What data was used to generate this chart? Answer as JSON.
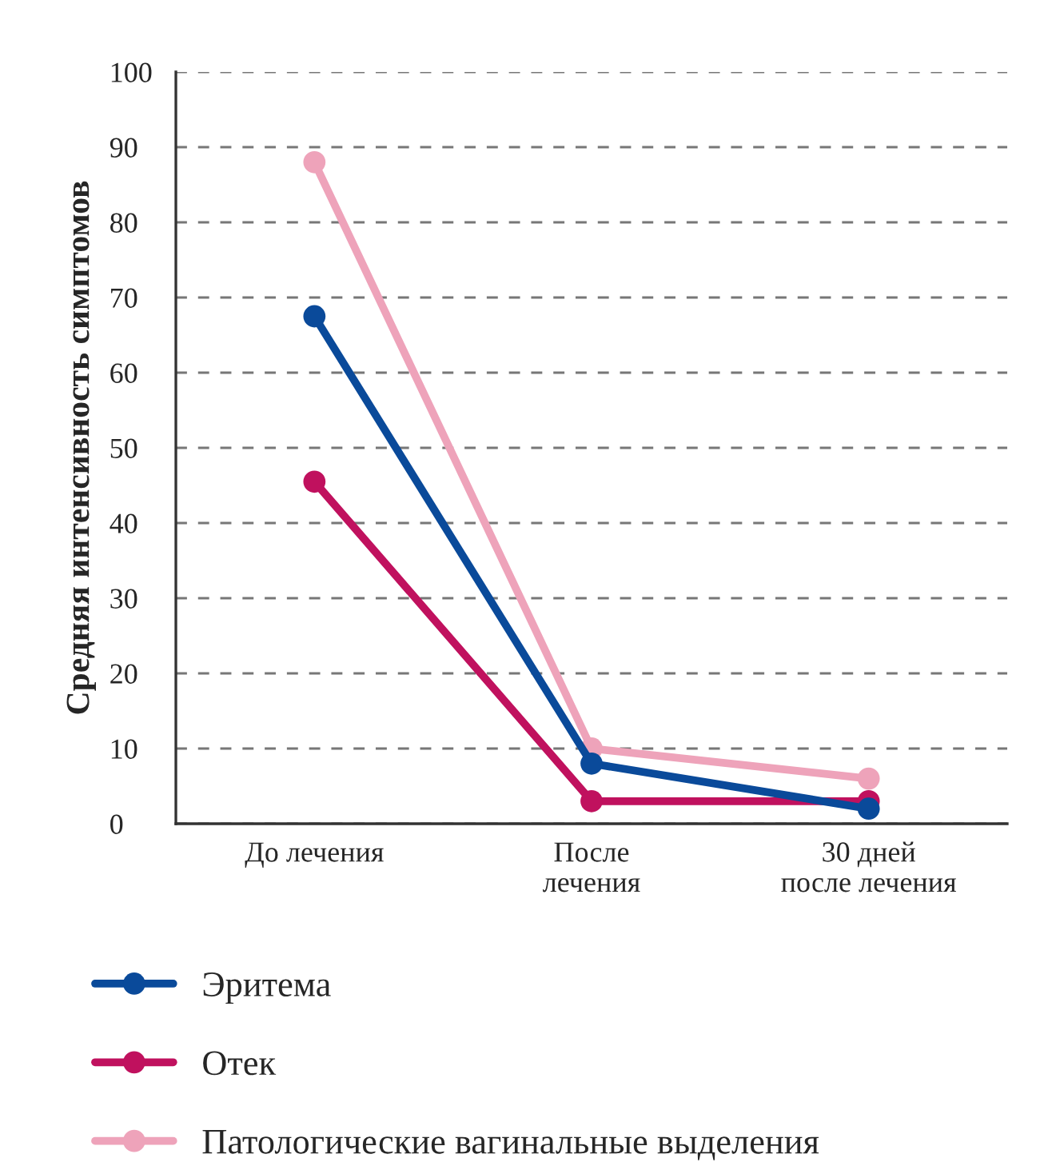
{
  "chart_data": {
    "type": "line",
    "ylabel": "Средняя интенсивность симптомов",
    "categories": [
      "До лечения",
      "После\nлечения",
      "30 дней\nпосле лечения"
    ],
    "series": [
      {
        "name": "Эритема",
        "color": "#0a4a9a",
        "values": [
          67.5,
          8,
          2
        ]
      },
      {
        "name": "Отек",
        "color": "#c0115e",
        "values": [
          45.5,
          3,
          3
        ]
      },
      {
        "name": "Патологические вагинальные выделения",
        "color": "#eea3ba",
        "values": [
          88,
          10,
          6
        ]
      }
    ],
    "ylim": [
      0,
      100
    ],
    "yticks": [
      0,
      10,
      20,
      30,
      40,
      50,
      60,
      70,
      80,
      90,
      100
    ],
    "grid": "y",
    "legend": "bottom",
    "marker": "circle",
    "line_style": "solid"
  }
}
